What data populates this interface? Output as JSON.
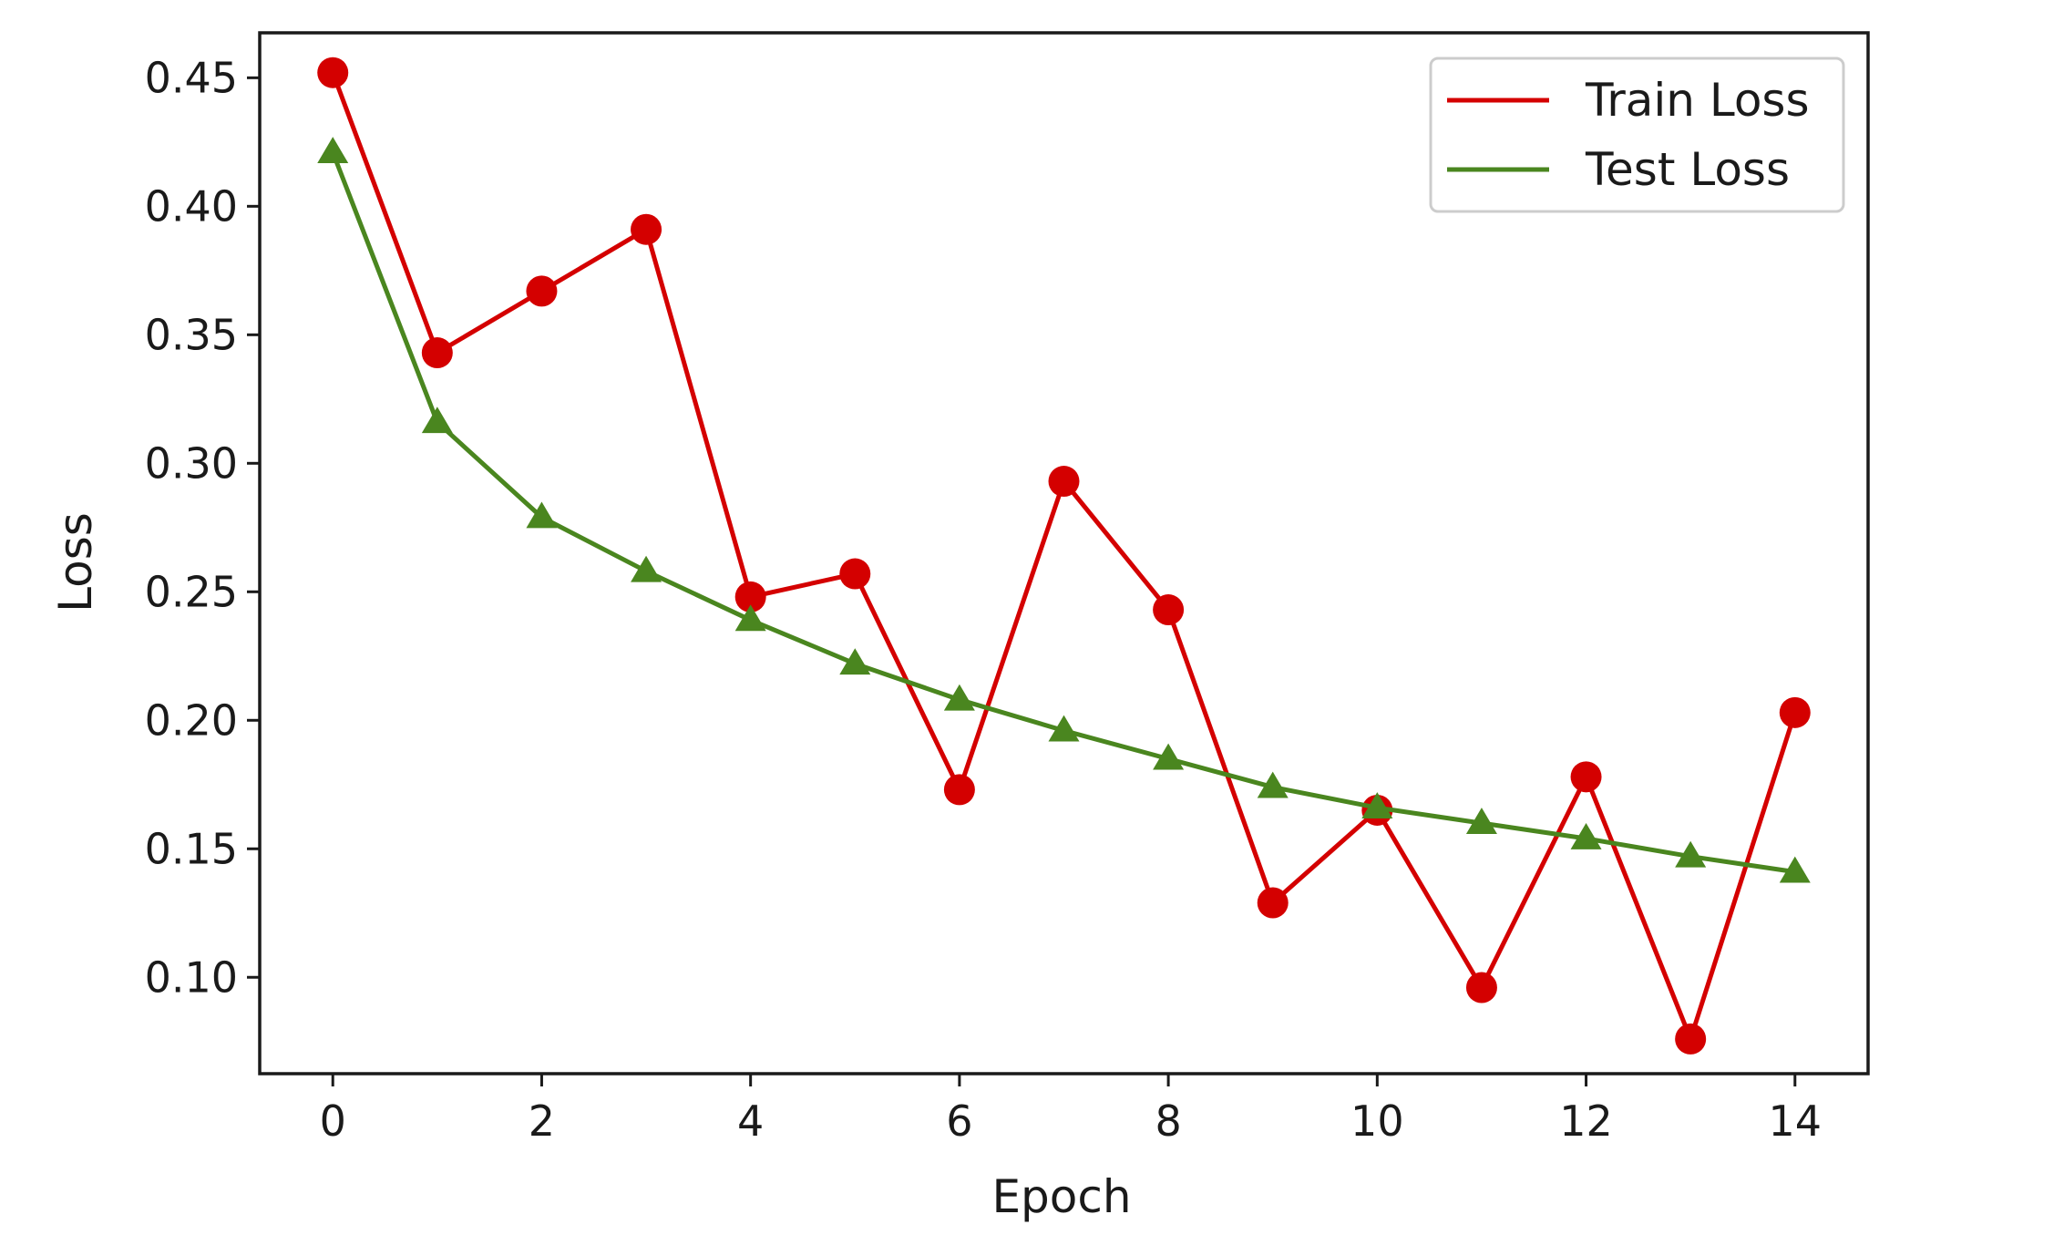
{
  "chart_data": {
    "type": "line",
    "title": "",
    "xlabel": "Epoch",
    "ylabel": "Loss",
    "x": [
      0,
      1,
      2,
      3,
      4,
      5,
      6,
      7,
      8,
      9,
      10,
      11,
      12,
      13,
      14
    ],
    "xlim": [
      -0.7,
      14.7
    ],
    "ylim": [
      0.0625,
      0.4675
    ],
    "xticks": [
      0,
      2,
      4,
      6,
      8,
      10,
      12,
      14
    ],
    "xtick_labels": [
      "0",
      "2",
      "4",
      "6",
      "8",
      "10",
      "12",
      "14"
    ],
    "yticks": [
      0.1,
      0.15,
      0.2,
      0.25,
      0.3,
      0.35,
      0.4,
      0.45
    ],
    "ytick_labels": [
      "0.10",
      "0.15",
      "0.20",
      "0.25",
      "0.30",
      "0.35",
      "0.40",
      "0.45"
    ],
    "grid": false,
    "legend_position": "top-right",
    "series": [
      {
        "name": "Train Loss",
        "color": "#d40000",
        "marker": "circle",
        "values": [
          0.452,
          0.343,
          0.367,
          0.391,
          0.248,
          0.257,
          0.173,
          0.293,
          0.243,
          0.129,
          0.165,
          0.096,
          0.178,
          0.076,
          0.203
        ]
      },
      {
        "name": "Test Loss",
        "color": "#4a861f",
        "marker": "triangle",
        "values": [
          0.421,
          0.316,
          0.279,
          0.258,
          0.239,
          0.222,
          0.208,
          0.196,
          0.185,
          0.174,
          0.166,
          0.16,
          0.154,
          0.147,
          0.141
        ]
      }
    ]
  }
}
